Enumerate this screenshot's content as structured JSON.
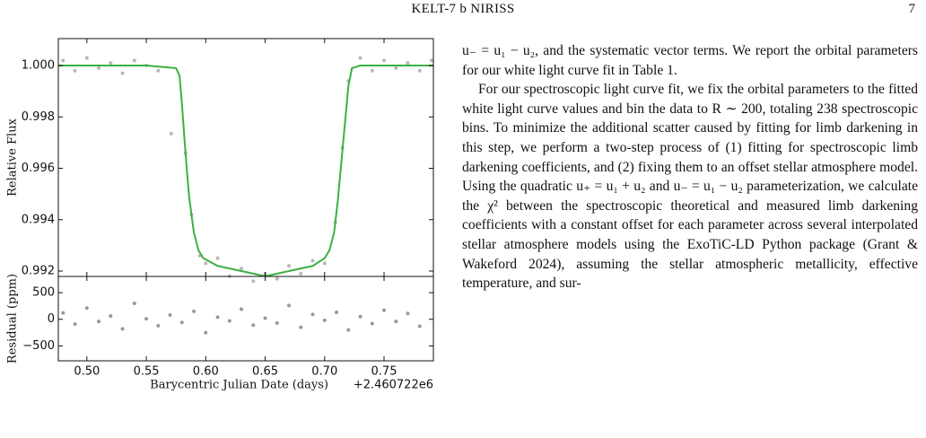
{
  "header": {
    "title": "KELT-7 b NIRISS",
    "page": "7"
  },
  "chart_data": [
    {
      "type": "scatter",
      "ylabel": "Relative Flux",
      "xlim": [
        0.476,
        0.7915
      ],
      "ylim": [
        0.99179,
        1.00105
      ],
      "yticks": [
        {
          "value": 0.992,
          "label": "0.992"
        },
        {
          "value": 0.994,
          "label": "0.994"
        },
        {
          "value": 0.996,
          "label": "0.996"
        },
        {
          "value": 0.998,
          "label": "0.998"
        },
        {
          "value": 1.0,
          "label": "1.000"
        }
      ],
      "points": {
        "color": "#888888",
        "x": [
          0.48,
          0.49,
          0.5,
          0.51,
          0.52,
          0.53,
          0.54,
          0.55,
          0.56,
          0.571,
          0.583,
          0.588,
          0.595,
          0.6,
          0.61,
          0.62,
          0.63,
          0.64,
          0.65,
          0.66,
          0.67,
          0.68,
          0.69,
          0.7,
          0.709,
          0.715,
          0.72,
          0.73,
          0.74,
          0.75,
          0.76,
          0.77,
          0.78,
          0.79
        ],
        "values": [
          1.0002,
          0.9998,
          1.0003,
          0.9999,
          1.0001,
          0.9997,
          1.0002,
          1.0,
          0.9998,
          0.99735,
          0.9966,
          0.9942,
          0.9926,
          0.9923,
          0.9925,
          0.9918,
          0.9921,
          0.9916,
          0.9919,
          0.9917,
          0.9922,
          0.9919,
          0.9924,
          0.9923,
          0.9939,
          0.9968,
          0.9994,
          1.0003,
          0.9998,
          1.0002,
          0.9999,
          1.0001,
          0.9998,
          1.0002
        ]
      },
      "model": {
        "color": "#3cb043",
        "x": [
          0.476,
          0.5,
          0.55,
          0.575,
          0.578,
          0.58,
          0.582,
          0.584,
          0.586,
          0.59,
          0.594,
          0.598,
          0.61,
          0.63,
          0.65,
          0.67,
          0.69,
          0.7,
          0.704,
          0.708,
          0.711,
          0.714,
          0.717,
          0.72,
          0.723,
          0.73,
          0.76,
          0.7915
        ],
        "values": [
          1.0,
          1.0,
          1.0,
          0.9999,
          0.9996,
          0.9985,
          0.9972,
          0.996,
          0.9949,
          0.9935,
          0.9928,
          0.9925,
          0.9922,
          0.992,
          0.9918,
          0.992,
          0.9922,
          0.9925,
          0.9928,
          0.9935,
          0.9947,
          0.9962,
          0.9977,
          0.9992,
          0.9999,
          1.0,
          1.0,
          1.0
        ]
      }
    },
    {
      "type": "scatter",
      "ylabel": "Residual (ppm)",
      "xlabel": "Barycentric Julian Date (days)",
      "offset": "+2.460722e6",
      "xlim": [
        0.476,
        0.7915
      ],
      "ylim": [
        -780,
        805
      ],
      "xticks": [
        {
          "value": 0.5,
          "label": "0.50"
        },
        {
          "value": 0.55,
          "label": "0.55"
        },
        {
          "value": 0.6,
          "label": "0.60"
        },
        {
          "value": 0.65,
          "label": "0.65"
        },
        {
          "value": 0.7,
          "label": "0.70"
        },
        {
          "value": 0.75,
          "label": "0.75"
        }
      ],
      "yticks": [
        {
          "value": -500,
          "label": "−500"
        },
        0,
        500
      ],
      "points": {
        "color": "#555555",
        "x": [
          0.48,
          0.49,
          0.5,
          0.51,
          0.52,
          0.53,
          0.54,
          0.55,
          0.56,
          0.57,
          0.58,
          0.59,
          0.6,
          0.61,
          0.62,
          0.63,
          0.64,
          0.65,
          0.66,
          0.67,
          0.68,
          0.69,
          0.7,
          0.71,
          0.72,
          0.73,
          0.74,
          0.75,
          0.76,
          0.77,
          0.78
        ],
        "values": [
          120,
          -90,
          210,
          -40,
          60,
          -180,
          300,
          10,
          -120,
          80,
          -60,
          150,
          -250,
          40,
          -30,
          190,
          -110,
          20,
          -70,
          260,
          -150,
          90,
          -20,
          130,
          -200,
          50,
          -80,
          170,
          -40,
          110,
          -130
        ]
      }
    }
  ],
  "body": {
    "paragraphs": [
      "u₋ = u₁ − u₂, and the systematic vector terms. We report the orbital parameters for our white light curve fit in Table 1.",
      "For our spectroscopic light curve fit, we fix the orbital parameters to the fitted white light curve values and bin the data to R ∼ 200, totaling 238 spectroscopic bins. To minimize the additional scatter caused by fitting for limb darkening in this step, we perform a two-step process of (1) fitting for spectroscopic limb darkening coefficients, and (2) fixing them to an offset stellar atmosphere model. Using the quadratic u₊ = u₁ + u₂ and u₋ = u₁ − u₂ parameterization, we calculate the χ² between the spectroscopic theoretical and measured limb darkening coefficients with a constant offset for each parameter across several interpolated stellar atmosphere models using the ExoTiC-LD Python package (Grant & Wakeford 2024), assuming the stellar atmospheric metallicity, effective temperature, and sur-"
    ]
  }
}
